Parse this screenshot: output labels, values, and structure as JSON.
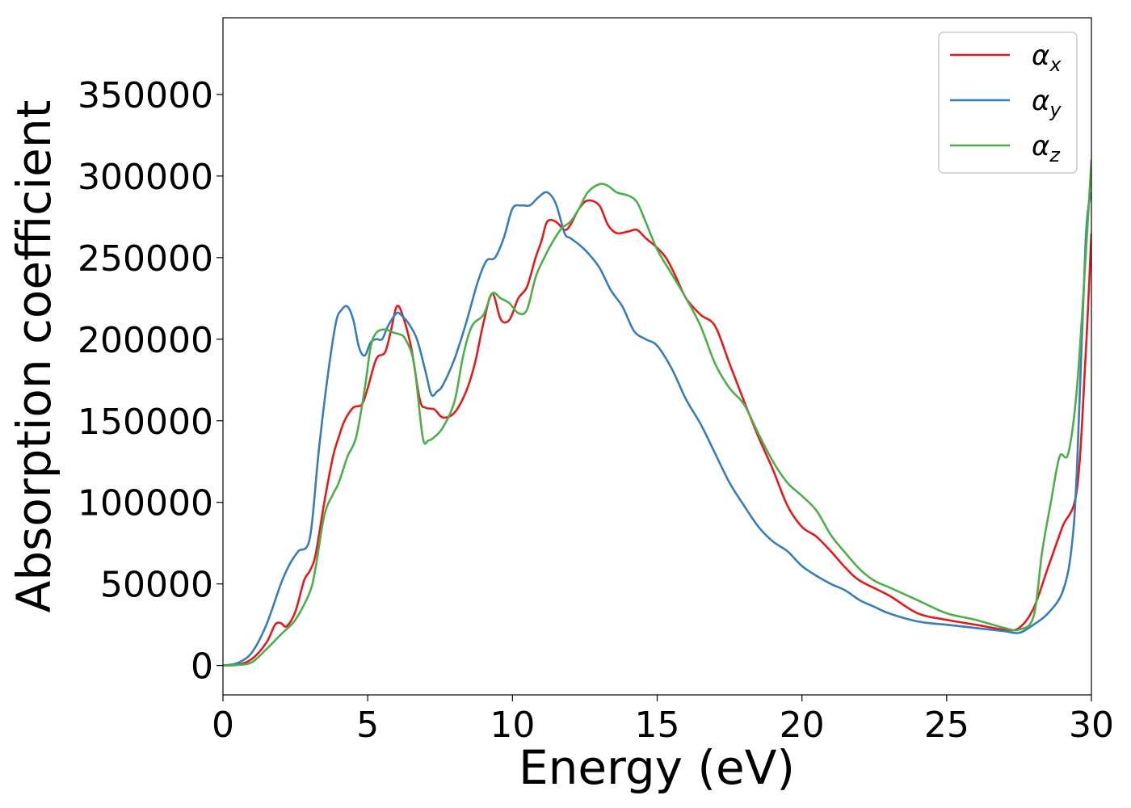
{
  "chart_data": {
    "type": "line",
    "title": "",
    "xlabel": "Energy (eV)",
    "ylabel": "Absorption coefficient",
    "xlim": [
      0,
      30
    ],
    "ylim": [
      -18000,
      397000
    ],
    "xticks": [
      0,
      5,
      10,
      15,
      20,
      25,
      30
    ],
    "yticks": [
      0,
      50000,
      100000,
      150000,
      200000,
      250000,
      300000,
      350000
    ],
    "grid": false,
    "legend_position": "top-right",
    "series": [
      {
        "name": "α",
        "subscript": "x",
        "color": "#e41a1c",
        "x": [
          0,
          0.5,
          1,
          1.5,
          1.8,
          2,
          2.2,
          2.5,
          2.8,
          3,
          3.2,
          3.5,
          3.8,
          4,
          4.2,
          4.5,
          4.8,
          5,
          5.3,
          5.6,
          5.8,
          6,
          6.2,
          6.5,
          6.8,
          7,
          7.3,
          7.6,
          8,
          8.4,
          8.7,
          9,
          9.3,
          9.6,
          9.9,
          10.2,
          10.5,
          10.8,
          11,
          11.2,
          11.5,
          11.8,
          12,
          12.3,
          12.6,
          13,
          13.3,
          13.6,
          14,
          14.3,
          14.6,
          15,
          15.3,
          15.6,
          16,
          16.5,
          17,
          17.5,
          18,
          18.5,
          19,
          19.5,
          20,
          20.5,
          21,
          21.5,
          22,
          23,
          24,
          25,
          26,
          27,
          27.5,
          28,
          28.5,
          29,
          29.5,
          29.8,
          30
        ],
        "y": [
          0,
          500,
          4000,
          14000,
          25000,
          26000,
          24000,
          33000,
          52000,
          58000,
          68000,
          100000,
          128000,
          140000,
          150000,
          158000,
          160000,
          170000,
          188000,
          192000,
          205000,
          220000,
          215000,
          195000,
          163000,
          158000,
          157000,
          152000,
          155000,
          168000,
          185000,
          210000,
          228000,
          212000,
          212000,
          225000,
          232000,
          250000,
          260000,
          272000,
          272000,
          267000,
          270000,
          280000,
          285000,
          282000,
          270000,
          265000,
          266000,
          267000,
          262000,
          256000,
          250000,
          240000,
          225000,
          215000,
          208000,
          185000,
          162000,
          140000,
          120000,
          98000,
          85000,
          79000,
          70000,
          60000,
          52000,
          43000,
          32000,
          28000,
          25000,
          22000,
          23000,
          35000,
          60000,
          85000,
          108000,
          190000,
          265000
        ]
      },
      {
        "name": "α",
        "subscript": "y",
        "color": "#377eb8",
        "x": [
          0,
          0.5,
          1,
          1.5,
          2,
          2.3,
          2.6,
          3,
          3.3,
          3.6,
          3.9,
          4.1,
          4.3,
          4.5,
          4.7,
          4.9,
          5.1,
          5.3,
          5.5,
          5.7,
          6,
          6.2,
          6.4,
          6.7,
          7,
          7.2,
          7.4,
          7.6,
          8,
          8.4,
          8.8,
          9.1,
          9.4,
          9.7,
          10,
          10.3,
          10.6,
          10.9,
          11.2,
          11.5,
          11.8,
          12,
          12.3,
          12.6,
          13,
          13.4,
          13.8,
          14.2,
          14.6,
          15,
          15.5,
          16,
          16.5,
          17,
          17.5,
          18,
          18.5,
          19,
          19.5,
          20,
          20.5,
          21,
          21.5,
          22,
          22.5,
          23,
          24,
          25,
          26,
          27,
          27.5,
          28,
          28.5,
          29,
          29.3,
          29.5,
          29.8,
          30
        ],
        "y": [
          0,
          1500,
          8000,
          25000,
          50000,
          62000,
          70000,
          78000,
          130000,
          175000,
          210000,
          218000,
          220000,
          212000,
          195000,
          190000,
          198000,
          200000,
          200000,
          208000,
          216000,
          214000,
          210000,
          200000,
          180000,
          166000,
          168000,
          172000,
          188000,
          210000,
          235000,
          248000,
          250000,
          262000,
          280000,
          282000,
          282000,
          287000,
          290000,
          283000,
          265000,
          262000,
          258000,
          253000,
          244000,
          230000,
          220000,
          205000,
          200000,
          196000,
          182000,
          163000,
          148000,
          130000,
          112000,
          98000,
          85000,
          76000,
          70000,
          61000,
          55000,
          50000,
          46000,
          40000,
          36000,
          32000,
          27000,
          25000,
          23000,
          21000,
          20000,
          25000,
          32000,
          45000,
          70000,
          120000,
          260000,
          290000
        ]
      },
      {
        "name": "α",
        "subscript": "z",
        "color": "#4daf4a",
        "x": [
          0,
          0.5,
          1,
          1.5,
          2,
          2.5,
          3,
          3.2,
          3.5,
          3.8,
          4,
          4.3,
          4.6,
          4.9,
          5.1,
          5.3,
          5.6,
          5.9,
          6.1,
          6.3,
          6.6,
          6.9,
          7.1,
          7.3,
          7.6,
          8,
          8.3,
          8.6,
          9,
          9.3,
          9.6,
          9.9,
          10.2,
          10.5,
          10.8,
          11.1,
          11.4,
          11.7,
          12,
          12.3,
          12.6,
          13,
          13.3,
          13.6,
          14,
          14.3,
          14.6,
          15,
          15.5,
          16,
          16.5,
          17,
          17.5,
          18,
          18.5,
          19,
          19.5,
          20,
          20.5,
          21,
          21.5,
          22,
          22.5,
          23,
          24,
          25,
          26,
          27,
          27.5,
          28,
          28.3,
          28.6,
          28.9,
          29.2,
          29.5,
          29.8,
          30
        ],
        "y": [
          0,
          300,
          2000,
          10000,
          19000,
          28000,
          45000,
          60000,
          92000,
          105000,
          112000,
          128000,
          140000,
          170000,
          195000,
          204000,
          206000,
          204000,
          203000,
          200000,
          185000,
          140000,
          138000,
          140000,
          146000,
          162000,
          190000,
          208000,
          215000,
          228000,
          225000,
          222000,
          216000,
          218000,
          238000,
          250000,
          260000,
          268000,
          272000,
          280000,
          290000,
          295000,
          294000,
          290000,
          288000,
          284000,
          272000,
          255000,
          240000,
          225000,
          208000,
          185000,
          170000,
          160000,
          142000,
          125000,
          112000,
          104000,
          95000,
          80000,
          69000,
          59000,
          52000,
          48000,
          40000,
          32000,
          28000,
          23000,
          22000,
          30000,
          70000,
          100000,
          128000,
          130000,
          170000,
          250000,
          310000
        ]
      }
    ]
  }
}
